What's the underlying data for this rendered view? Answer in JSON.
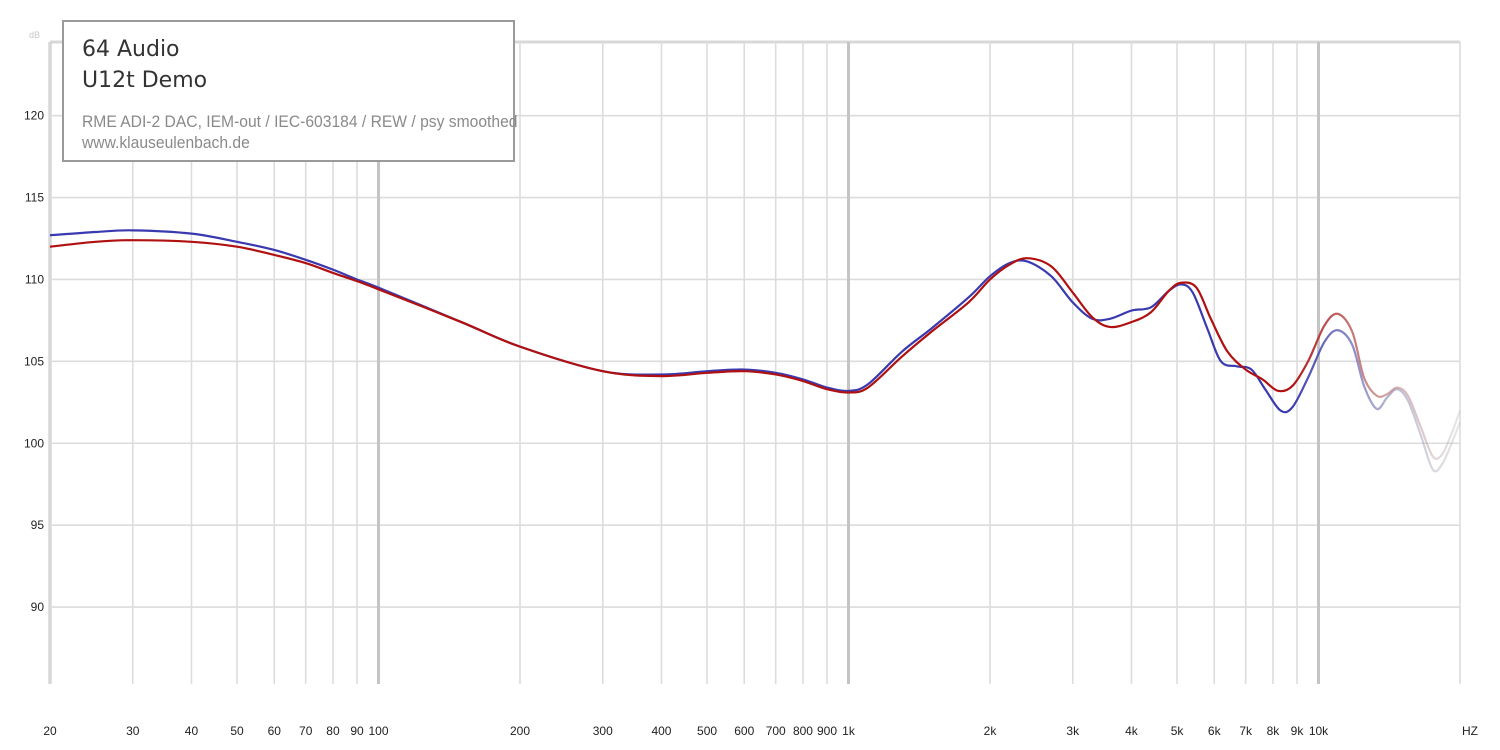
{
  "legend": {
    "title_line1": "64 Audio",
    "title_line2": "U12t Demo",
    "subtitle": "RME ADI-2 DAC, IEM-out / IEC-603184 / REW / psy smoothed",
    "website": "www.klauseulenbach.de"
  },
  "chart_data": {
    "type": "line",
    "ylabel": "dB",
    "xlabel": "HZ",
    "x_scale": "log",
    "xlim": [
      20,
      20000
    ],
    "ylim": [
      85.3,
      124.5
    ],
    "grid": true,
    "y_ticks": [
      90,
      95,
      100,
      105,
      110,
      115,
      120
    ],
    "x_ticks": [
      {
        "v": 20,
        "label": "20"
      },
      {
        "v": 30,
        "label": "30"
      },
      {
        "v": 40,
        "label": "40"
      },
      {
        "v": 50,
        "label": "50"
      },
      {
        "v": 60,
        "label": "60"
      },
      {
        "v": 70,
        "label": "70"
      },
      {
        "v": 80,
        "label": "80"
      },
      {
        "v": 90,
        "label": "90"
      },
      {
        "v": 100,
        "label": "100"
      },
      {
        "v": 200,
        "label": "200"
      },
      {
        "v": 300,
        "label": "300"
      },
      {
        "v": 400,
        "label": "400"
      },
      {
        "v": 500,
        "label": "500"
      },
      {
        "v": 600,
        "label": "600"
      },
      {
        "v": 700,
        "label": "700"
      },
      {
        "v": 800,
        "label": "800"
      },
      {
        "v": 900,
        "label": "900"
      },
      {
        "v": 1000,
        "label": "1k"
      },
      {
        "v": 2000,
        "label": "2k"
      },
      {
        "v": 3000,
        "label": "3k"
      },
      {
        "v": 4000,
        "label": "4k"
      },
      {
        "v": 5000,
        "label": "5k"
      },
      {
        "v": 6000,
        "label": "6k"
      },
      {
        "v": 7000,
        "label": "7k"
      },
      {
        "v": 8000,
        "label": "8k"
      },
      {
        "v": 9000,
        "label": "9k"
      },
      {
        "v": 10000,
        "label": "10k"
      }
    ],
    "series": [
      {
        "color": "#3a3ab0",
        "points": [
          [
            20,
            112.7
          ],
          [
            25,
            112.9
          ],
          [
            30,
            113.0
          ],
          [
            40,
            112.8
          ],
          [
            50,
            112.3
          ],
          [
            60,
            111.8
          ],
          [
            70,
            111.2
          ],
          [
            80,
            110.6
          ],
          [
            90,
            110.0
          ],
          [
            100,
            109.5
          ],
          [
            150,
            107.4
          ],
          [
            200,
            105.9
          ],
          [
            300,
            104.4
          ],
          [
            400,
            104.2
          ],
          [
            500,
            104.4
          ],
          [
            600,
            104.5
          ],
          [
            700,
            104.3
          ],
          [
            800,
            103.9
          ],
          [
            900,
            103.4
          ],
          [
            1000,
            103.2
          ],
          [
            1100,
            103.6
          ],
          [
            1300,
            105.6
          ],
          [
            1500,
            107.0
          ],
          [
            1800,
            108.9
          ],
          [
            2000,
            110.2
          ],
          [
            2200,
            111.0
          ],
          [
            2400,
            111.1
          ],
          [
            2700,
            110.2
          ],
          [
            3000,
            108.6
          ],
          [
            3300,
            107.6
          ],
          [
            3600,
            107.6
          ],
          [
            4000,
            108.1
          ],
          [
            4400,
            108.3
          ],
          [
            4800,
            109.3
          ],
          [
            5100,
            109.7
          ],
          [
            5400,
            109.2
          ],
          [
            5800,
            107.0
          ],
          [
            6200,
            105.0
          ],
          [
            6700,
            104.7
          ],
          [
            7200,
            104.5
          ],
          [
            7700,
            103.3
          ],
          [
            8300,
            102.0
          ],
          [
            8800,
            102.2
          ],
          [
            9500,
            104.0
          ],
          [
            10300,
            106.2
          ],
          [
            11000,
            106.9
          ],
          [
            11800,
            106.0
          ],
          [
            12500,
            103.5
          ],
          [
            13300,
            102.1
          ],
          [
            14000,
            102.8
          ],
          [
            14700,
            103.3
          ],
          [
            15500,
            102.6
          ],
          [
            16500,
            100.5
          ],
          [
            17500,
            98.4
          ],
          [
            18300,
            98.7
          ],
          [
            19200,
            100.0
          ],
          [
            20000,
            101.3
          ]
        ]
      },
      {
        "color": "#b01010",
        "points": [
          [
            20,
            112.0
          ],
          [
            25,
            112.3
          ],
          [
            30,
            112.4
          ],
          [
            40,
            112.3
          ],
          [
            50,
            112.0
          ],
          [
            60,
            111.5
          ],
          [
            70,
            111.0
          ],
          [
            80,
            110.4
          ],
          [
            90,
            109.9
          ],
          [
            100,
            109.4
          ],
          [
            150,
            107.4
          ],
          [
            200,
            105.9
          ],
          [
            300,
            104.4
          ],
          [
            400,
            104.1
          ],
          [
            500,
            104.3
          ],
          [
            600,
            104.4
          ],
          [
            700,
            104.2
          ],
          [
            800,
            103.8
          ],
          [
            900,
            103.3
          ],
          [
            1000,
            103.1
          ],
          [
            1100,
            103.4
          ],
          [
            1300,
            105.3
          ],
          [
            1500,
            106.8
          ],
          [
            1800,
            108.6
          ],
          [
            2000,
            110.0
          ],
          [
            2200,
            110.9
          ],
          [
            2400,
            111.3
          ],
          [
            2700,
            110.8
          ],
          [
            3000,
            109.2
          ],
          [
            3300,
            107.7
          ],
          [
            3600,
            107.1
          ],
          [
            4000,
            107.4
          ],
          [
            4400,
            108.0
          ],
          [
            4800,
            109.3
          ],
          [
            5100,
            109.8
          ],
          [
            5500,
            109.5
          ],
          [
            5900,
            107.6
          ],
          [
            6400,
            105.6
          ],
          [
            7000,
            104.5
          ],
          [
            7600,
            103.9
          ],
          [
            8200,
            103.2
          ],
          [
            8800,
            103.5
          ],
          [
            9500,
            105.0
          ],
          [
            10300,
            107.2
          ],
          [
            11000,
            107.9
          ],
          [
            11800,
            106.8
          ],
          [
            12500,
            104.0
          ],
          [
            13300,
            102.9
          ],
          [
            14000,
            103.0
          ],
          [
            14700,
            103.4
          ],
          [
            15500,
            102.9
          ],
          [
            16500,
            101.0
          ],
          [
            17500,
            99.2
          ],
          [
            18300,
            99.3
          ],
          [
            19200,
            100.6
          ],
          [
            20000,
            102.0
          ]
        ]
      }
    ]
  }
}
